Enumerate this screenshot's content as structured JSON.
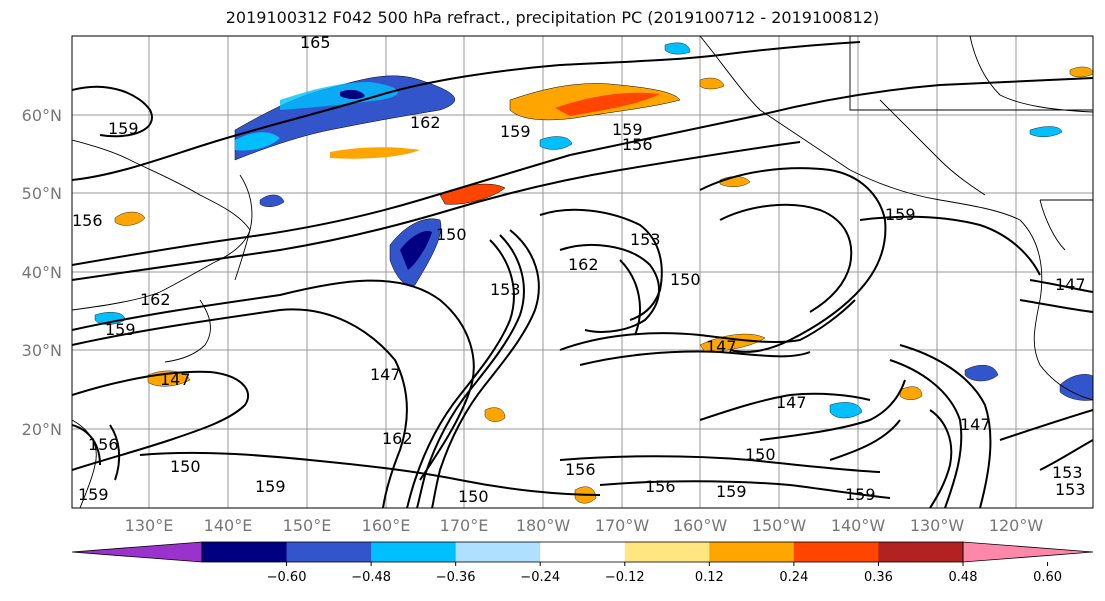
{
  "title": "2019100312 F042 500 hPa refract., precipitation PC (2019100712 - 2019100812)",
  "map": {
    "lat_ticks": [
      "60°N",
      "50°N",
      "40°N",
      "30°N",
      "20°N"
    ],
    "lon_ticks": [
      "130°E",
      "140°E",
      "150°E",
      "160°E",
      "170°E",
      "180°W",
      "170°W",
      "160°W",
      "150°W",
      "140°W",
      "130°W",
      "120°W"
    ],
    "contour_labels": [
      "165",
      "162",
      "159",
      "162",
      "159",
      "159",
      "156",
      "159",
      "156",
      "150",
      "153",
      "162",
      "150",
      "153",
      "147",
      "147",
      "162",
      "159",
      "150",
      "150",
      "156",
      "156",
      "159",
      "159",
      "147",
      "147",
      "147",
      "153",
      "153",
      "159",
      "156",
      "159",
      "147",
      "150"
    ]
  },
  "colorbar": {
    "ticks": [
      "−0.60",
      "−0.48",
      "−0.36",
      "−0.24",
      "−0.12",
      "0.12",
      "0.24",
      "0.36",
      "0.48",
      "0.60"
    ],
    "colors": [
      "#9933cc",
      "#000080",
      "#3355cc",
      "#00bfff",
      "#b0e0ff",
      "#ffffff",
      "#ffe680",
      "#ffa500",
      "#ff4500",
      "#b22222",
      "#ff88aa"
    ]
  }
}
